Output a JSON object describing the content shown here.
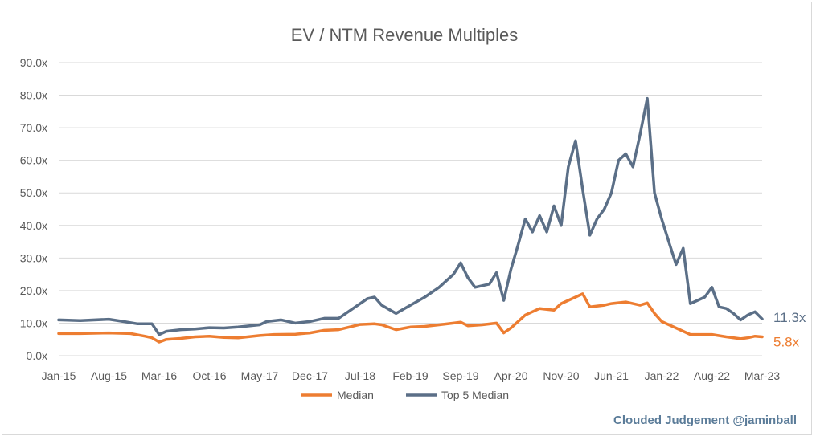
{
  "chart_data": {
    "type": "line",
    "title": "EV / NTM Revenue Multiples",
    "xlabel": "",
    "ylabel": "",
    "ylim": [
      0,
      90
    ],
    "y_ticks": [
      "0.0x",
      "10.0x",
      "20.0x",
      "30.0x",
      "40.0x",
      "50.0x",
      "60.0x",
      "70.0x",
      "80.0x",
      "90.0x"
    ],
    "x_ticks": [
      "Jan-15",
      "Aug-15",
      "Mar-16",
      "Oct-16",
      "May-17",
      "Dec-17",
      "Jul-18",
      "Feb-19",
      "Sep-19",
      "Apr-20",
      "Nov-20",
      "Jun-21",
      "Jan-22",
      "Aug-22",
      "Mar-23"
    ],
    "grid": true,
    "legend_position": "bottom",
    "colors": {
      "median": "#ed7d31",
      "top5": "#5b6f87"
    },
    "series": [
      {
        "name": "Median",
        "color": "#ed7d31",
        "end_label": "5.8x",
        "points": [
          [
            "Jan-15",
            6.8
          ],
          [
            "Apr-15",
            6.8
          ],
          [
            "Aug-15",
            7.0
          ],
          [
            "Nov-15",
            6.8
          ],
          [
            "Jan-16",
            6.0
          ],
          [
            "Feb-16",
            5.5
          ],
          [
            "Mar-16",
            4.2
          ],
          [
            "Apr-16",
            5.0
          ],
          [
            "Jun-16",
            5.3
          ],
          [
            "Aug-16",
            5.8
          ],
          [
            "Oct-16",
            6.0
          ],
          [
            "Dec-16",
            5.6
          ],
          [
            "Feb-17",
            5.5
          ],
          [
            "May-17",
            6.2
          ],
          [
            "Jul-17",
            6.5
          ],
          [
            "Oct-17",
            6.6
          ],
          [
            "Dec-17",
            7.0
          ],
          [
            "Feb-18",
            7.8
          ],
          [
            "Apr-18",
            8.0
          ],
          [
            "Jul-18",
            9.6
          ],
          [
            "Sep-18",
            9.8
          ],
          [
            "Oct-18",
            9.5
          ],
          [
            "Dec-18",
            8.0
          ],
          [
            "Feb-19",
            8.8
          ],
          [
            "Apr-19",
            9.0
          ],
          [
            "Jun-19",
            9.5
          ],
          [
            "Aug-19",
            10.0
          ],
          [
            "Sep-19",
            10.3
          ],
          [
            "Oct-19",
            9.2
          ],
          [
            "Dec-19",
            9.5
          ],
          [
            "Feb-20",
            10.0
          ],
          [
            "Mar-20",
            7.0
          ],
          [
            "Apr-20",
            8.5
          ],
          [
            "Jun-20",
            12.5
          ],
          [
            "Aug-20",
            14.5
          ],
          [
            "Oct-20",
            14.0
          ],
          [
            "Nov-20",
            16.0
          ],
          [
            "Jan-21",
            18.0
          ],
          [
            "Feb-21",
            19.0
          ],
          [
            "Mar-21",
            15.0
          ],
          [
            "May-21",
            15.5
          ],
          [
            "Jun-21",
            16.0
          ],
          [
            "Aug-21",
            16.5
          ],
          [
            "Oct-21",
            15.5
          ],
          [
            "Nov-21",
            16.2
          ],
          [
            "Dec-21",
            13.0
          ],
          [
            "Jan-22",
            10.5
          ],
          [
            "Mar-22",
            8.5
          ],
          [
            "May-22",
            6.5
          ],
          [
            "Jun-22",
            6.5
          ],
          [
            "Aug-22",
            6.5
          ],
          [
            "Oct-22",
            5.8
          ],
          [
            "Dec-22",
            5.2
          ],
          [
            "Jan-23",
            5.5
          ],
          [
            "Feb-23",
            6.0
          ],
          [
            "Mar-23",
            5.8
          ]
        ]
      },
      {
        "name": "Top 5 Median",
        "color": "#5b6f87",
        "end_label": "11.3x",
        "points": [
          [
            "Jan-15",
            11.0
          ],
          [
            "Apr-15",
            10.8
          ],
          [
            "Aug-15",
            11.2
          ],
          [
            "Oct-15",
            10.5
          ],
          [
            "Dec-15",
            9.8
          ],
          [
            "Feb-16",
            9.8
          ],
          [
            "Mar-16",
            6.5
          ],
          [
            "Apr-16",
            7.5
          ],
          [
            "Jun-16",
            8.0
          ],
          [
            "Aug-16",
            8.2
          ],
          [
            "Oct-16",
            8.6
          ],
          [
            "Dec-16",
            8.5
          ],
          [
            "Feb-17",
            8.8
          ],
          [
            "May-17",
            9.5
          ],
          [
            "Jun-17",
            10.5
          ],
          [
            "Aug-17",
            11.0
          ],
          [
            "Oct-17",
            10.0
          ],
          [
            "Dec-17",
            10.5
          ],
          [
            "Feb-18",
            11.5
          ],
          [
            "Apr-18",
            11.5
          ],
          [
            "Jun-18",
            14.5
          ],
          [
            "Aug-18",
            17.5
          ],
          [
            "Sep-18",
            18.0
          ],
          [
            "Oct-18",
            15.5
          ],
          [
            "Dec-18",
            13.0
          ],
          [
            "Feb-19",
            15.5
          ],
          [
            "Apr-19",
            18.0
          ],
          [
            "Jun-19",
            21.0
          ],
          [
            "Aug-19",
            25.0
          ],
          [
            "Sep-19",
            28.5
          ],
          [
            "Oct-19",
            24.0
          ],
          [
            "Nov-19",
            21.0
          ],
          [
            "Dec-19",
            21.5
          ],
          [
            "Jan-20",
            22.0
          ],
          [
            "Feb-20",
            25.5
          ],
          [
            "Mar-20",
            17.0
          ],
          [
            "Apr-20",
            26.5
          ],
          [
            "May-20",
            34.0
          ],
          [
            "Jun-20",
            42.0
          ],
          [
            "Jul-20",
            38.0
          ],
          [
            "Aug-20",
            43.0
          ],
          [
            "Sep-20",
            38.0
          ],
          [
            "Oct-20",
            46.0
          ],
          [
            "Nov-20",
            40.0
          ],
          [
            "Dec-20",
            58.0
          ],
          [
            "Jan-21",
            66.0
          ],
          [
            "Feb-21",
            51.0
          ],
          [
            "Mar-21",
            37.0
          ],
          [
            "Apr-21",
            42.0
          ],
          [
            "May-21",
            45.0
          ],
          [
            "Jun-21",
            50.0
          ],
          [
            "Jul-21",
            60.0
          ],
          [
            "Aug-21",
            62.0
          ],
          [
            "Sep-21",
            58.0
          ],
          [
            "Oct-21",
            68.0
          ],
          [
            "Nov-21",
            79.0
          ],
          [
            "Dec-21",
            50.0
          ],
          [
            "Jan-22",
            42.0
          ],
          [
            "Feb-22",
            35.0
          ],
          [
            "Mar-22",
            28.0
          ],
          [
            "Apr-22",
            33.0
          ],
          [
            "May-22",
            16.0
          ],
          [
            "Jun-22",
            17.0
          ],
          [
            "Jul-22",
            18.0
          ],
          [
            "Aug-22",
            21.0
          ],
          [
            "Sep-22",
            15.0
          ],
          [
            "Oct-22",
            14.5
          ],
          [
            "Nov-22",
            13.0
          ],
          [
            "Dec-22",
            11.0
          ],
          [
            "Jan-23",
            12.5
          ],
          [
            "Feb-23",
            13.5
          ],
          [
            "Mar-23",
            11.3
          ]
        ]
      }
    ]
  },
  "credit": "Clouded Judgement @jaminball"
}
